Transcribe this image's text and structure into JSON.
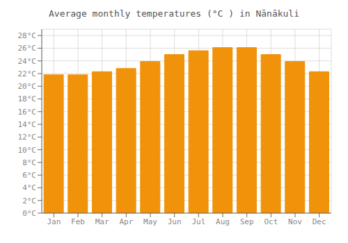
{
  "chart_data": {
    "type": "bar",
    "title": "Average monthly temperatures (°C ) in Nānākuli",
    "categories": [
      "Jan",
      "Feb",
      "Mar",
      "Apr",
      "May",
      "Jun",
      "Jul",
      "Aug",
      "Sep",
      "Oct",
      "Nov",
      "Dec"
    ],
    "values": [
      21.8,
      21.8,
      22.3,
      22.8,
      23.9,
      25.0,
      25.6,
      26.1,
      26.1,
      25.0,
      23.9,
      22.3
    ],
    "color": "#F0920A",
    "ylim": [
      0,
      29
    ],
    "yticks": [
      {
        "value": 0,
        "label": "0°C"
      },
      {
        "value": 2,
        "label": "2°C"
      },
      {
        "value": 4,
        "label": "4°C"
      },
      {
        "value": 6,
        "label": "6°C"
      },
      {
        "value": 8,
        "label": "8°C"
      },
      {
        "value": 10,
        "label": "10°C"
      },
      {
        "value": 12,
        "label": "12°C"
      },
      {
        "value": 14,
        "label": "14°C"
      },
      {
        "value": 16,
        "label": "16°C"
      },
      {
        "value": 18,
        "label": "18°C"
      },
      {
        "value": 20,
        "label": "20°C"
      },
      {
        "value": 22,
        "label": "22°C"
      },
      {
        "value": 24,
        "label": "24°C"
      },
      {
        "value": 26,
        "label": "26°C"
      },
      {
        "value": 28,
        "label": "28°C"
      }
    ],
    "grid": true
  }
}
